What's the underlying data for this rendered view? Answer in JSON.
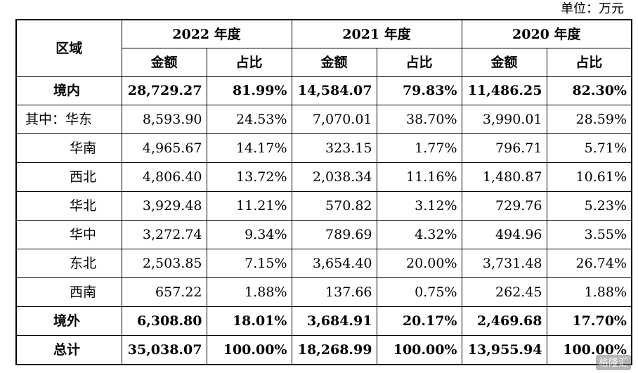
{
  "unit_label": "单位：万元",
  "header": {
    "region": "区域",
    "years": [
      "2022 年度",
      "2021 年度",
      "2020 年度"
    ],
    "amount": "金额",
    "ratio": "占比"
  },
  "rows": [
    {
      "name": "境内",
      "bold": true,
      "cells": [
        "28,729.27",
        "81.99%",
        "14,584.07",
        "79.83%",
        "11,486.25",
        "82.30%"
      ]
    },
    {
      "name": "其中：华东",
      "bold": false,
      "cells": [
        "8,593.90",
        "24.53%",
        "7,070.01",
        "38.70%",
        "3,990.01",
        "28.59%"
      ]
    },
    {
      "name": "华南",
      "bold": false,
      "cells": [
        "4,965.67",
        "14.17%",
        "323.15",
        "1.77%",
        "796.71",
        "5.71%"
      ]
    },
    {
      "name": "西北",
      "bold": false,
      "cells": [
        "4,806.40",
        "13.72%",
        "2,038.34",
        "11.16%",
        "1,480.87",
        "10.61%"
      ]
    },
    {
      "name": "华北",
      "bold": false,
      "cells": [
        "3,929.48",
        "11.21%",
        "570.82",
        "3.12%",
        "729.76",
        "5.23%"
      ]
    },
    {
      "name": "华中",
      "bold": false,
      "cells": [
        "3,272.74",
        "9.34%",
        "789.69",
        "4.32%",
        "494.96",
        "3.55%"
      ]
    },
    {
      "name": "东北",
      "bold": false,
      "cells": [
        "2,503.85",
        "7.15%",
        "3,654.40",
        "20.00%",
        "3,731.48",
        "26.74%"
      ]
    },
    {
      "name": "西南",
      "bold": false,
      "cells": [
        "657.22",
        "1.88%",
        "137.66",
        "0.75%",
        "262.45",
        "1.88%"
      ]
    },
    {
      "name": "境外",
      "bold": true,
      "cells": [
        "6,308.80",
        "18.01%",
        "3,684.91",
        "20.17%",
        "2,469.68",
        "17.70%"
      ]
    },
    {
      "name": "总计",
      "bold": true,
      "cells": [
        "35,038.07",
        "100.00%",
        "18,268.99",
        "100.00%",
        "13,955.94",
        "100.00%"
      ]
    }
  ],
  "watermark": "格隆汇"
}
